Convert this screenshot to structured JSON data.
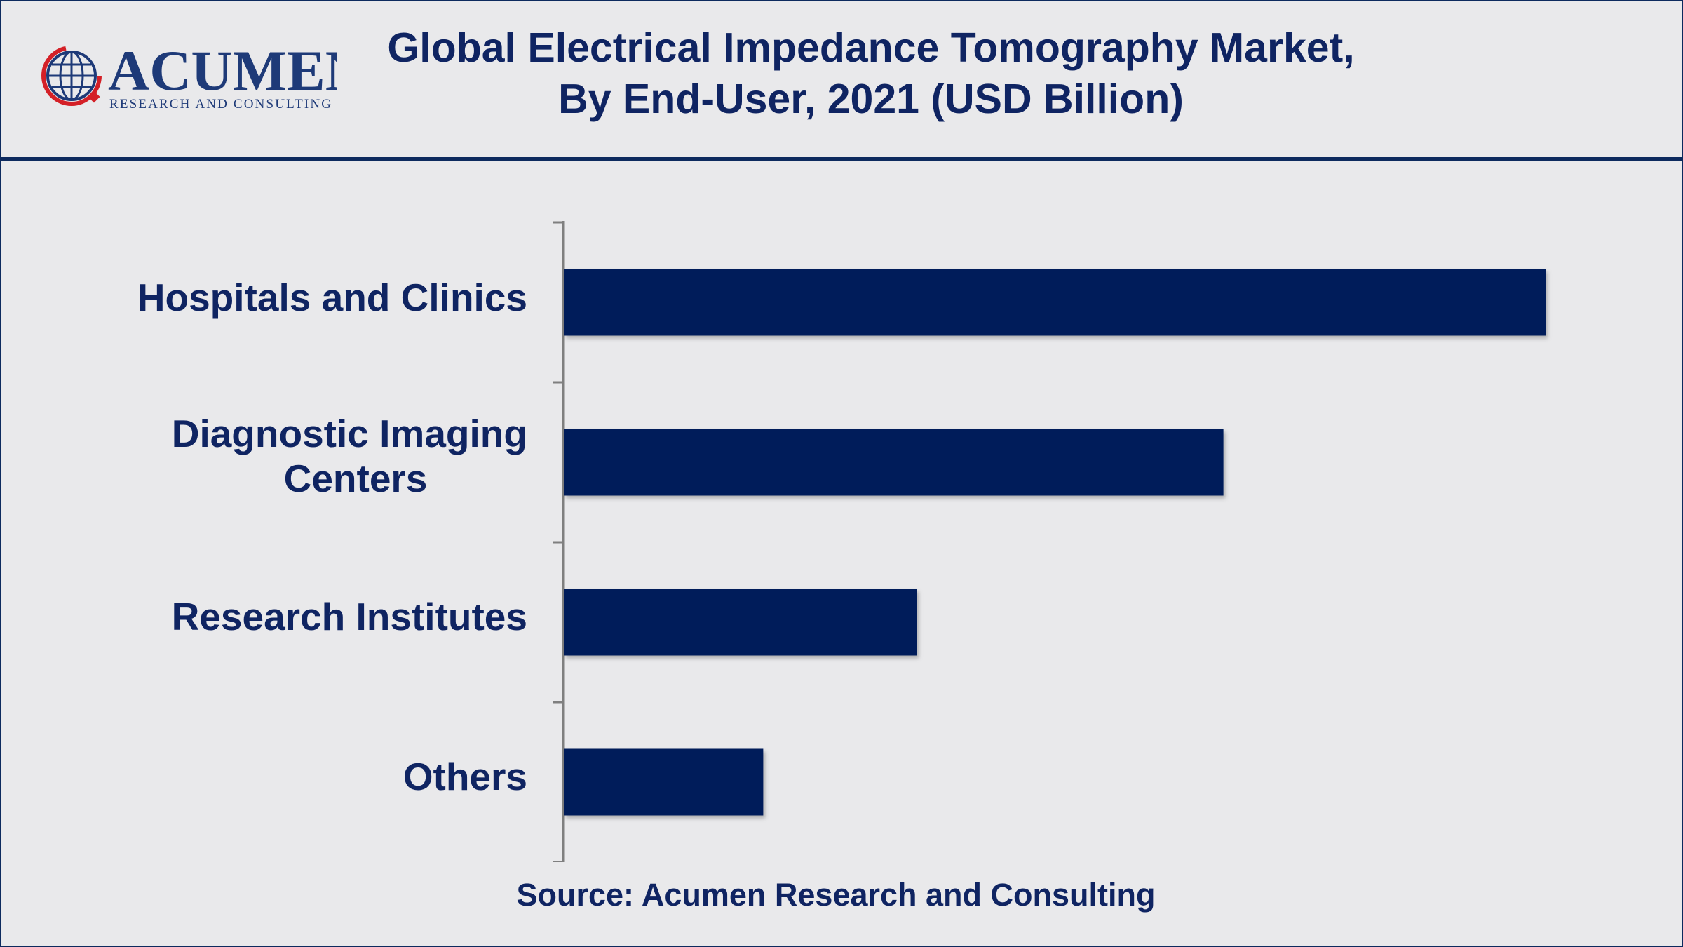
{
  "brand": {
    "name": "ACUMEN",
    "tagline": "RESEARCH AND CONSULTING"
  },
  "header": {
    "title_line1": "Global Electrical Impedance Tomography Market,",
    "title_line2": "By End-User, 2021 (USD Billion)"
  },
  "colors": {
    "bar": "#001e5a",
    "text": "#0f2462",
    "background": "#e9e9eb",
    "axis": "#7f7f7f",
    "logo_red": "#d42027"
  },
  "chart_data": {
    "type": "bar",
    "orientation": "horizontal",
    "title": "Global Electrical Impedance Tomography Market, By End-User, 2021 (USD Billion)",
    "categories": [
      "Hospitals and Clinics",
      "Diagnostic Imaging Centers",
      "Research Institutes",
      "Others"
    ],
    "values": [
      0.64,
      0.43,
      0.23,
      0.13
    ],
    "xlabel": "",
    "ylabel": "",
    "xlim": [
      0,
      0.7
    ],
    "grid": false,
    "legend": "none"
  },
  "labels": {
    "cat0": "Hospitals and Clinics",
    "cat1_line1": "Diagnostic Imaging",
    "cat1_line2": "Centers",
    "cat2": "Research Institutes",
    "cat3": "Others"
  },
  "footer": {
    "source": "Source: Acumen Research and Consulting"
  }
}
